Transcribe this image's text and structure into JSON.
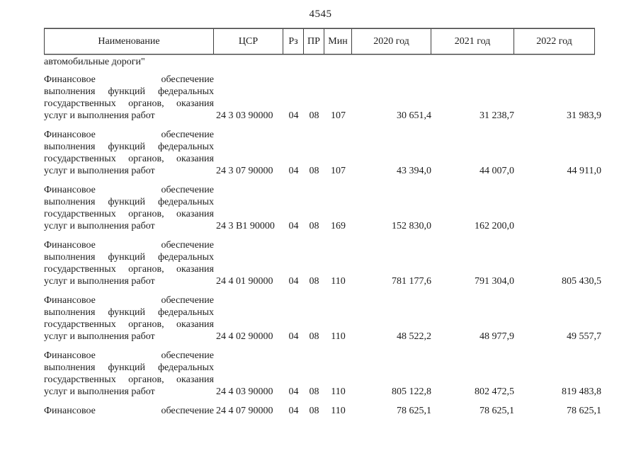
{
  "page": {
    "number": "4545",
    "carryover_text": "автомобильные дороги\""
  },
  "table": {
    "headers": {
      "name": "Наименование",
      "csr": "ЦСР",
      "rz": "Рз",
      "pr": "ПР",
      "min": "Мин",
      "y2020": "2020 год",
      "y2021": "2021 год",
      "y2022": "2022 год"
    },
    "rows": [
      {
        "name_lines": [
          "Финансовое обеспечение",
          "выполнения функций федеральных",
          "государственных органов, оказания",
          "услуг и выполнения работ"
        ],
        "csr": "24 3 03 90000",
        "rz": "04",
        "pr": "08",
        "min": "107",
        "y2020": "30 651,4",
        "y2021": "31 238,7",
        "y2022": "31 983,9"
      },
      {
        "name_lines": [
          "Финансовое обеспечение",
          "выполнения функций федеральных",
          "государственных органов, оказания",
          "услуг и выполнения работ"
        ],
        "csr": "24 3 07 90000",
        "rz": "04",
        "pr": "08",
        "min": "107",
        "y2020": "43 394,0",
        "y2021": "44 007,0",
        "y2022": "44 911,0"
      },
      {
        "name_lines": [
          "Финансовое обеспечение",
          "выполнения функций федеральных",
          "государственных органов, оказания",
          "услуг и выполнения работ"
        ],
        "csr": "24 3 В1 90000",
        "rz": "04",
        "pr": "08",
        "min": "169",
        "y2020": "152 830,0",
        "y2021": "162 200,0",
        "y2022": ""
      },
      {
        "name_lines": [
          "Финансовое обеспечение",
          "выполнения функций федеральных",
          "государственных органов, оказания",
          "услуг и выполнения работ"
        ],
        "csr": "24 4 01 90000",
        "rz": "04",
        "pr": "08",
        "min": "110",
        "y2020": "781 177,6",
        "y2021": "791 304,0",
        "y2022": "805 430,5"
      },
      {
        "name_lines": [
          "Финансовое обеспечение",
          "выполнения функций федеральных",
          "государственных органов, оказания",
          "услуг и выполнения работ"
        ],
        "csr": "24 4 02 90000",
        "rz": "04",
        "pr": "08",
        "min": "110",
        "y2020": "48 522,2",
        "y2021": "48 977,9",
        "y2022": "49 557,7"
      },
      {
        "name_lines": [
          "Финансовое обеспечение",
          "выполнения функций федеральных",
          "государственных органов, оказания",
          "услуг и выполнения работ"
        ],
        "csr": "24 4 03 90000",
        "rz": "04",
        "pr": "08",
        "min": "110",
        "y2020": "805 122,8",
        "y2021": "802 472,5",
        "y2022": "819 483,8"
      },
      {
        "name_lines": [
          "Финансовое обеспечение"
        ],
        "csr": "24 4 07 90000",
        "rz": "04",
        "pr": "08",
        "min": "110",
        "y2020": "78 625,1",
        "y2021": "78 625,1",
        "y2022": "78 625,1"
      }
    ]
  }
}
